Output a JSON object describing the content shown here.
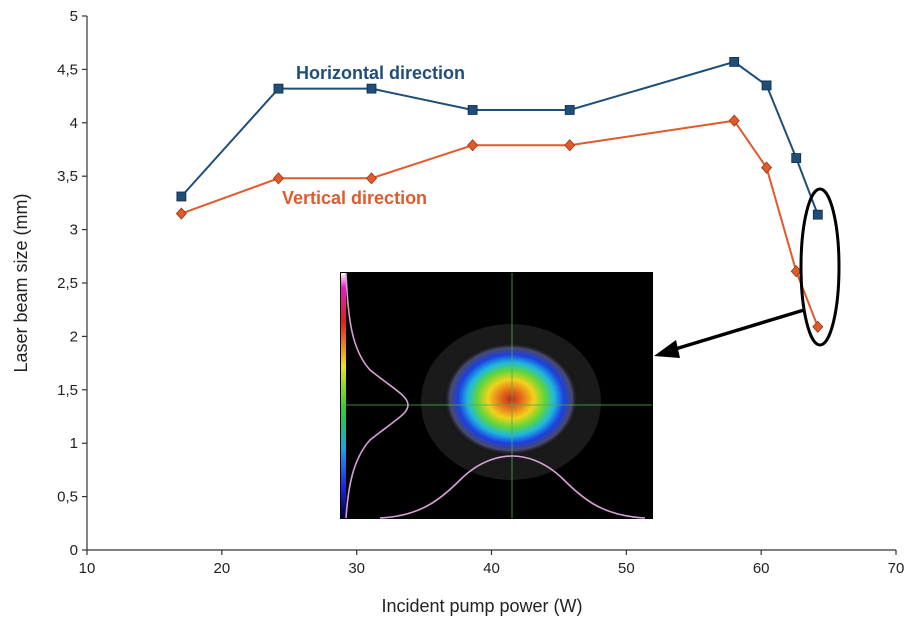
{
  "chart_data": {
    "type": "line",
    "xlabel": "Incident pump power (W)",
    "ylabel": "Laser beam size (mm)",
    "xlim": [
      10,
      70
    ],
    "ylim": [
      0,
      5
    ],
    "x_ticks": [
      "10",
      "20",
      "30",
      "40",
      "50",
      "60",
      "70"
    ],
    "y_ticks": [
      "0",
      "0,5",
      "1",
      "1,5",
      "2",
      "2,5",
      "3",
      "3,5",
      "4",
      "4,5",
      "5"
    ],
    "grid": false,
    "series": [
      {
        "name": "Horizontal direction",
        "color": "#1f4e79",
        "marker": "square",
        "x": [
          17,
          24.2,
          31.1,
          38.6,
          45.8,
          58,
          60.4,
          62.6,
          64.2
        ],
        "y": [
          3.31,
          4.32,
          4.32,
          4.12,
          4.12,
          4.57,
          4.35,
          3.67,
          3.14
        ]
      },
      {
        "name": "Vertical direction",
        "color": "#e05a2b",
        "marker": "diamond",
        "x": [
          17,
          24.2,
          31.1,
          38.6,
          45.8,
          58,
          60.4,
          62.6,
          64.2
        ],
        "y": [
          3.15,
          3.48,
          3.48,
          3.79,
          3.79,
          4.02,
          3.58,
          2.61,
          2.09
        ]
      }
    ],
    "annotations": {
      "ellipse_around_x": 64.2,
      "inset": "laser beam profile image (false-color) with horizontal and vertical intensity profiles",
      "arrow": "from ellipse to inset image"
    }
  }
}
